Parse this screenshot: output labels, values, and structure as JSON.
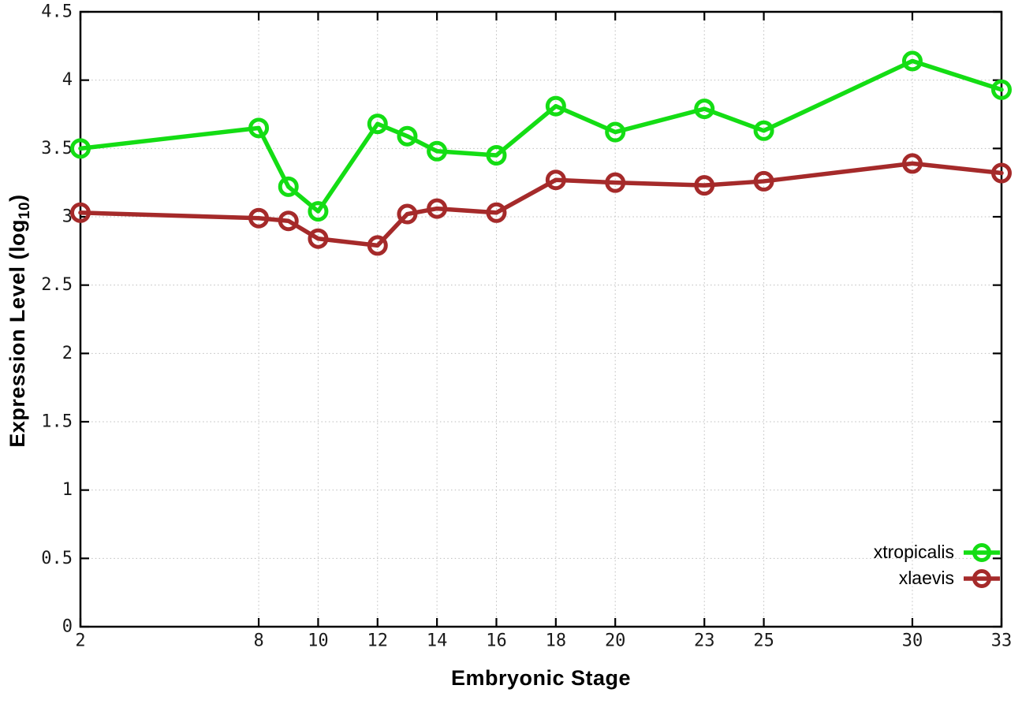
{
  "chart_data": {
    "type": "line",
    "xlabel": "Embryonic Stage",
    "ylabel": "Expression Level (log10)",
    "ylabel_parts": {
      "main": "Expression Level (log",
      "sub": "10",
      "close": ")"
    },
    "x": [
      2,
      8,
      9,
      10,
      12,
      13,
      14,
      16,
      18,
      20,
      23,
      25,
      30,
      33
    ],
    "xlim": [
      2,
      33
    ],
    "ylim": [
      0,
      4.5
    ],
    "xticks": {
      "values": [
        2,
        8,
        10,
        12,
        14,
        16,
        18,
        20,
        23,
        25,
        30,
        33
      ],
      "labels": [
        "2",
        "8",
        "10",
        "12",
        "14",
        "16",
        "18",
        "20",
        "23",
        "25",
        "30",
        "33"
      ]
    },
    "yticks": {
      "values": [
        0,
        0.5,
        1,
        1.5,
        2,
        2.5,
        3,
        3.5,
        4,
        4.5
      ],
      "labels": [
        "0",
        "0.5",
        "1",
        "1.5",
        "2",
        "2.5",
        "3",
        "3.5",
        "4",
        "4.5"
      ]
    },
    "grid": true,
    "legend_position": "bottom-right",
    "series": [
      {
        "name": "xtropicalis",
        "color": "#14dd14",
        "marker": "open-circle",
        "values": [
          3.5,
          3.65,
          3.22,
          3.04,
          3.68,
          3.59,
          3.48,
          3.45,
          3.81,
          3.62,
          3.79,
          3.63,
          4.14,
          3.93
        ]
      },
      {
        "name": "xlaevis",
        "color": "#a52a2a",
        "marker": "open-circle",
        "values": [
          3.03,
          2.99,
          2.97,
          2.84,
          2.79,
          3.02,
          3.06,
          3.03,
          3.27,
          3.25,
          3.23,
          3.26,
          3.39,
          3.32
        ]
      }
    ]
  },
  "colors": {
    "background": "#ffffff",
    "grid": "#bdbdbd",
    "axis": "#000000",
    "tick_text": "#1a1a1a"
  }
}
